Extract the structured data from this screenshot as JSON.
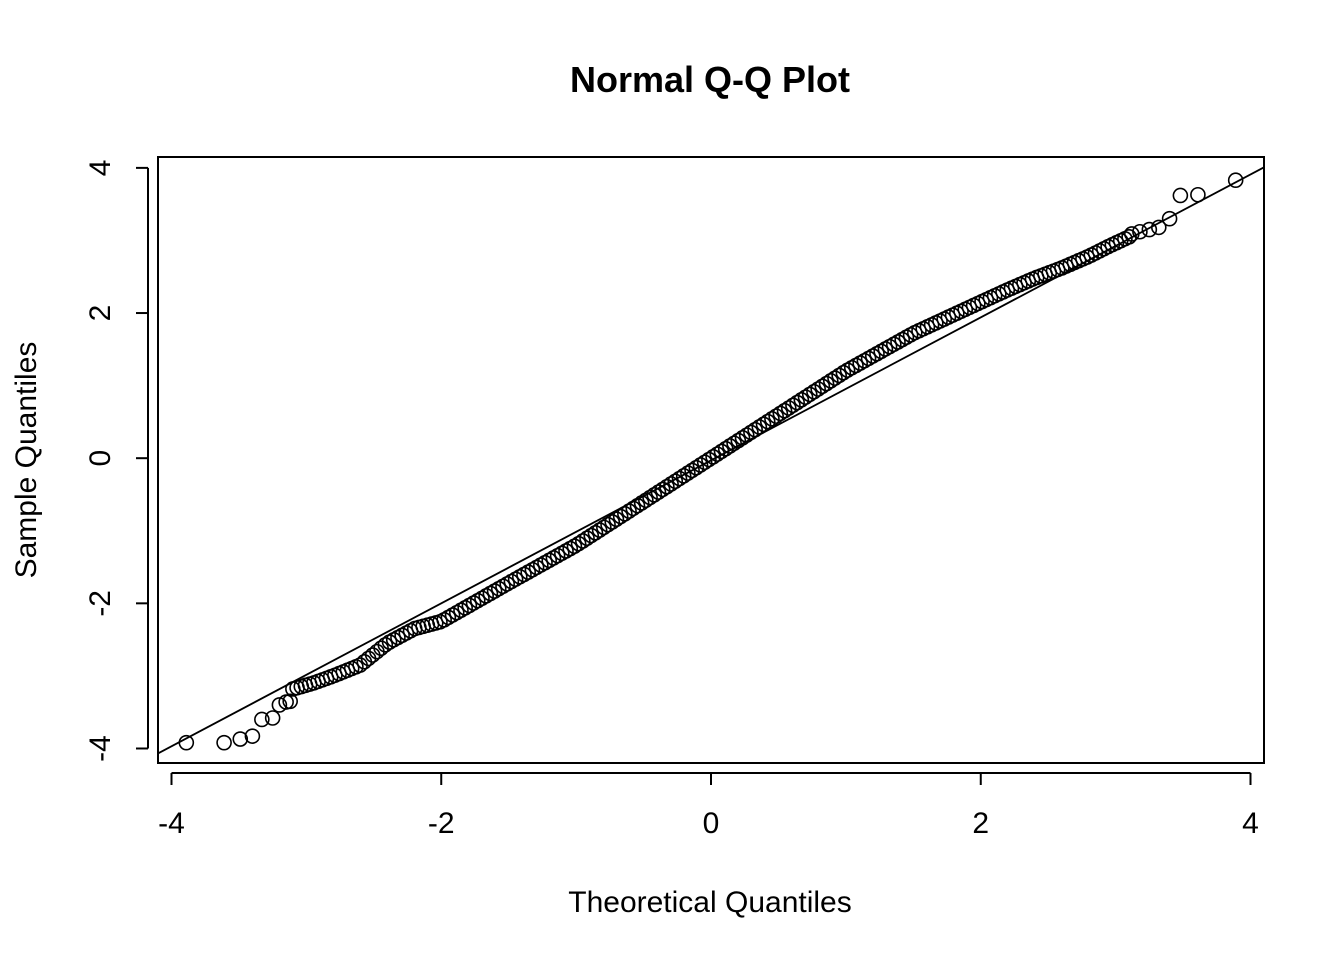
{
  "chart_data": {
    "type": "scatter",
    "title": "Normal Q-Q Plot",
    "xlabel": "Theoretical Quantiles",
    "ylabel": "Sample Quantiles",
    "xlim": [
      -4.1,
      4.1
    ],
    "ylim": [
      -4.2,
      4.15
    ],
    "xticks": [
      -4,
      -2,
      0,
      2,
      4
    ],
    "yticks": [
      -4,
      -2,
      0,
      2,
      4
    ],
    "xtick_labels": [
      "-4",
      "-2",
      "0",
      "2",
      "4"
    ],
    "ytick_labels": [
      "-4",
      "-2",
      "0",
      "2",
      "4"
    ],
    "grid": false,
    "legend": "none",
    "marker": "open-circle",
    "reference_line": {
      "slope": 0.985,
      "intercept": -0.03
    },
    "outliers": {
      "x": [
        -3.89,
        -3.61,
        -3.49,
        -3.4,
        -3.33,
        -3.25,
        -3.2,
        -3.15,
        -3.12,
        3.12,
        3.18,
        3.25,
        3.32,
        3.4,
        3.48,
        3.61,
        3.89
      ],
      "y": [
        -3.92,
        -3.92,
        -3.87,
        -3.83,
        -3.6,
        -3.58,
        -3.4,
        -3.36,
        -3.35,
        3.09,
        3.12,
        3.15,
        3.18,
        3.3,
        3.62,
        3.63,
        3.83
      ]
    },
    "curve_knots": {
      "x": [
        -3.1,
        -2.95,
        -2.8,
        -2.6,
        -2.4,
        -2.2,
        -2.0,
        -1.5,
        -1.0,
        -0.5,
        0.0,
        0.5,
        1.0,
        1.5,
        2.0,
        2.2,
        2.4,
        2.6,
        2.8,
        2.95,
        3.1
      ],
      "y": [
        -3.18,
        -3.1,
        -3.0,
        -2.85,
        -2.55,
        -2.35,
        -2.25,
        -1.72,
        -1.2,
        -0.6,
        0.0,
        0.6,
        1.2,
        1.72,
        2.15,
        2.32,
        2.48,
        2.62,
        2.78,
        2.92,
        3.05
      ]
    },
    "curve_point_count": 200
  }
}
